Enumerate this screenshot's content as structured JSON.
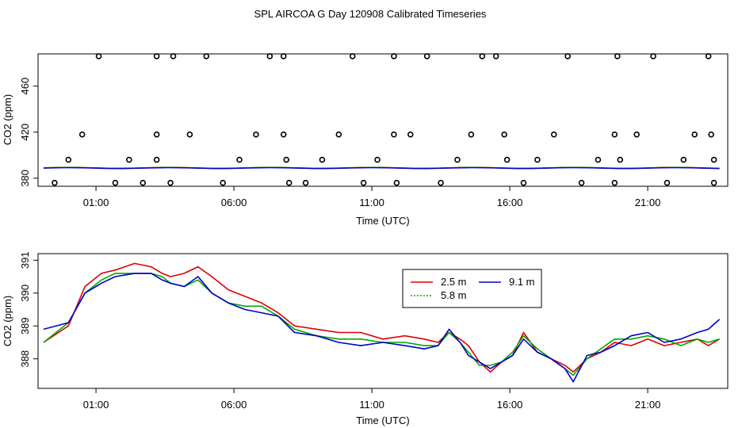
{
  "title": "SPL AIRCOA G  Day 120908  Calibrated Timeseries",
  "chart_data": [
    {
      "type": "scatter",
      "xlabel": "Time (UTC)",
      "ylabel": "CO2 (ppm)",
      "xlim": [
        -1.1,
        23.9
      ],
      "ylim": [
        373,
        488
      ],
      "xticks": [
        1,
        6,
        11,
        16,
        21
      ],
      "xtick_labels": [
        "01:00",
        "06:00",
        "11:00",
        "16:00",
        "21:00"
      ],
      "yticks": [
        380,
        420,
        460
      ],
      "ytick_labels": [
        "380",
        "420",
        "460"
      ],
      "markers": {
        "x": [
          -0.5,
          0,
          0.5,
          1.1,
          1.7,
          2.2,
          2.7,
          3.2,
          3.2,
          3.2,
          3.7,
          3.8,
          4.4,
          5.0,
          5.6,
          6.2,
          6.8,
          7.3,
          7.8,
          7.8,
          7.9,
          8.0,
          8.6,
          9.2,
          9.8,
          10.3,
          10.7,
          11.2,
          11.8,
          11.8,
          11.9,
          12.4,
          13.0,
          13.5,
          14.1,
          14.6,
          15.0,
          15.5,
          15.8,
          15.9,
          16.5,
          17.0,
          17.6,
          18.1,
          18.6,
          19.2,
          19.8,
          19.8,
          19.9,
          20.0,
          20.6,
          21.2,
          21.7,
          22.3,
          22.7,
          23.2,
          23.3,
          23.4,
          23.4
        ],
        "y": [
          376,
          396,
          418,
          486,
          376,
          396,
          376,
          396,
          418,
          486,
          376,
          486,
          418,
          486,
          376,
          396,
          418,
          486,
          486,
          418,
          396,
          376,
          376,
          396,
          418,
          486,
          376,
          396,
          418,
          486,
          376,
          418,
          486,
          376,
          396,
          418,
          486,
          486,
          418,
          396,
          376,
          396,
          418,
          486,
          376,
          396,
          376,
          418,
          486,
          396,
          418,
          486,
          376,
          396,
          418,
          486,
          418,
          396,
          376
        ]
      },
      "series": [
        {
          "name": "2.5 m",
          "color": "#dd0000",
          "level": 389.0
        },
        {
          "name": "5.8 m",
          "color": "#00aa00",
          "level": 388.9
        },
        {
          "name": "9.1 m",
          "color": "#0000cc",
          "level": 388.8
        }
      ]
    },
    {
      "type": "line",
      "xlabel": "Time (UTC)",
      "ylabel": "CO2 (ppm)",
      "xlim": [
        -1.1,
        23.9
      ],
      "ylim": [
        387.1,
        391.2
      ],
      "xticks": [
        1,
        6,
        11,
        16,
        21
      ],
      "xtick_labels": [
        "01:00",
        "06:00",
        "11:00",
        "16:00",
        "21:00"
      ],
      "yticks": [
        388,
        389,
        390,
        391
      ],
      "ytick_labels": [
        "388",
        "389",
        "390",
        "391"
      ],
      "x": [
        -0.9,
        0.0,
        0.6,
        1.2,
        1.7,
        2.4,
        3.0,
        3.4,
        3.7,
        4.2,
        4.7,
        5.2,
        5.8,
        6.4,
        7.0,
        7.6,
        8.2,
        9.0,
        9.8,
        10.6,
        11.4,
        12.2,
        12.9,
        13.4,
        13.8,
        14.2,
        14.5,
        14.9,
        15.3,
        15.7,
        16.1,
        16.5,
        17.0,
        17.5,
        18.0,
        18.3,
        18.8,
        19.3,
        19.8,
        20.4,
        21.0,
        21.6,
        22.2,
        22.8,
        23.2,
        23.6
      ],
      "series": [
        {
          "name": "2.5 m",
          "color": "#dd0000",
          "values": [
            388.5,
            389.0,
            390.2,
            390.6,
            390.7,
            390.9,
            390.8,
            390.6,
            390.5,
            390.6,
            390.8,
            390.5,
            390.1,
            389.9,
            389.7,
            389.4,
            389.0,
            388.9,
            388.8,
            388.8,
            388.6,
            388.7,
            388.6,
            388.5,
            388.8,
            388.6,
            388.4,
            387.9,
            387.6,
            387.9,
            388.1,
            388.8,
            388.2,
            388.0,
            387.8,
            387.6,
            388.0,
            388.2,
            388.5,
            388.4,
            388.6,
            388.4,
            388.5,
            388.6,
            388.4,
            388.6
          ]
        },
        {
          "name": "5.8 m",
          "color": "#00aa00",
          "values": [
            388.5,
            389.1,
            390.0,
            390.4,
            390.6,
            390.6,
            390.6,
            390.5,
            390.3,
            390.2,
            390.4,
            390.0,
            389.7,
            389.6,
            389.6,
            389.3,
            388.9,
            388.7,
            388.6,
            388.6,
            388.5,
            388.5,
            388.4,
            388.4,
            388.8,
            388.5,
            388.2,
            387.8,
            387.8,
            387.9,
            388.2,
            388.7,
            388.3,
            388.0,
            387.7,
            387.5,
            388.0,
            388.3,
            388.6,
            388.6,
            388.7,
            388.6,
            388.4,
            388.6,
            388.5,
            388.6
          ]
        },
        {
          "name": "9.1 m",
          "color": "#0000cc",
          "values": [
            388.9,
            389.1,
            390.0,
            390.3,
            390.5,
            390.6,
            390.6,
            390.4,
            390.3,
            390.2,
            390.5,
            390.0,
            389.7,
            389.5,
            389.4,
            389.3,
            388.8,
            388.7,
            388.5,
            388.4,
            388.5,
            388.4,
            388.3,
            388.4,
            388.9,
            388.5,
            388.1,
            387.9,
            387.7,
            387.9,
            388.1,
            388.6,
            388.2,
            388.0,
            387.7,
            387.3,
            388.1,
            388.2,
            388.4,
            388.7,
            388.8,
            388.5,
            388.6,
            388.8,
            388.9,
            389.2
          ]
        }
      ],
      "legend": {
        "placement": "top-center",
        "entries": [
          "2.5 m",
          "5.8 m",
          "9.1 m"
        ]
      }
    }
  ]
}
